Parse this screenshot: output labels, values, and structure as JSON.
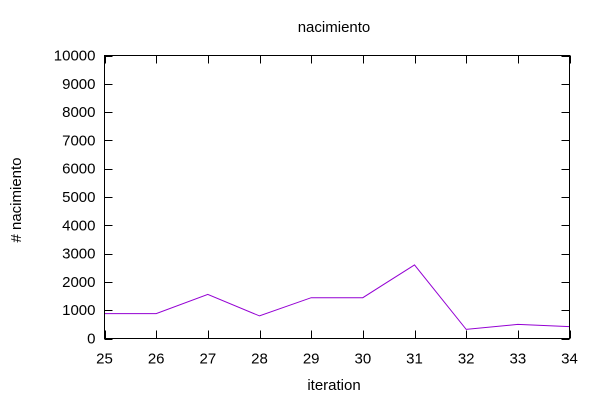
{
  "chart_data": {
    "type": "line",
    "title": "nacimiento",
    "xlabel": "iteration",
    "ylabel": "# nacimiento",
    "xlim": [
      25,
      34
    ],
    "ylim": [
      0,
      10000
    ],
    "x_ticks": [
      "25",
      "26",
      "27",
      "28",
      "29",
      "30",
      "31",
      "32",
      "33",
      "34"
    ],
    "y_ticks": [
      "0",
      "1000",
      "2000",
      "3000",
      "4000",
      "5000",
      "6000",
      "7000",
      "8000",
      "9000",
      "10000"
    ],
    "grid": false,
    "legend": "none",
    "series": [
      {
        "color": "#9400d3",
        "x": [
          25,
          26,
          27,
          28,
          29,
          30,
          31,
          32,
          33,
          34
        ],
        "y": [
          880,
          880,
          1560,
          800,
          1440,
          1440,
          2600,
          320,
          500,
          420
        ]
      }
    ]
  }
}
